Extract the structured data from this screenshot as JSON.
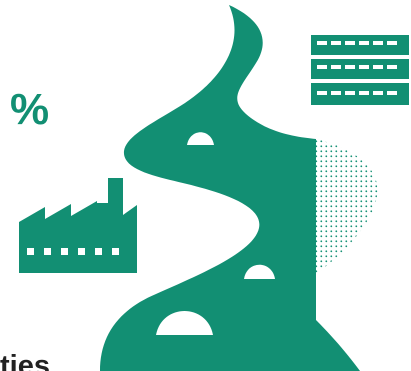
{
  "colors": {
    "accent": "#128f73",
    "text_dark": "#222222",
    "dots": "#128f73",
    "background": "#ffffff"
  },
  "icons": {
    "percent": "percent-sign",
    "factory": "factory-icon",
    "building": "building-icon",
    "river": "river-shape-icon"
  },
  "labels": {
    "percent": "%",
    "clipped_word": "ties"
  }
}
